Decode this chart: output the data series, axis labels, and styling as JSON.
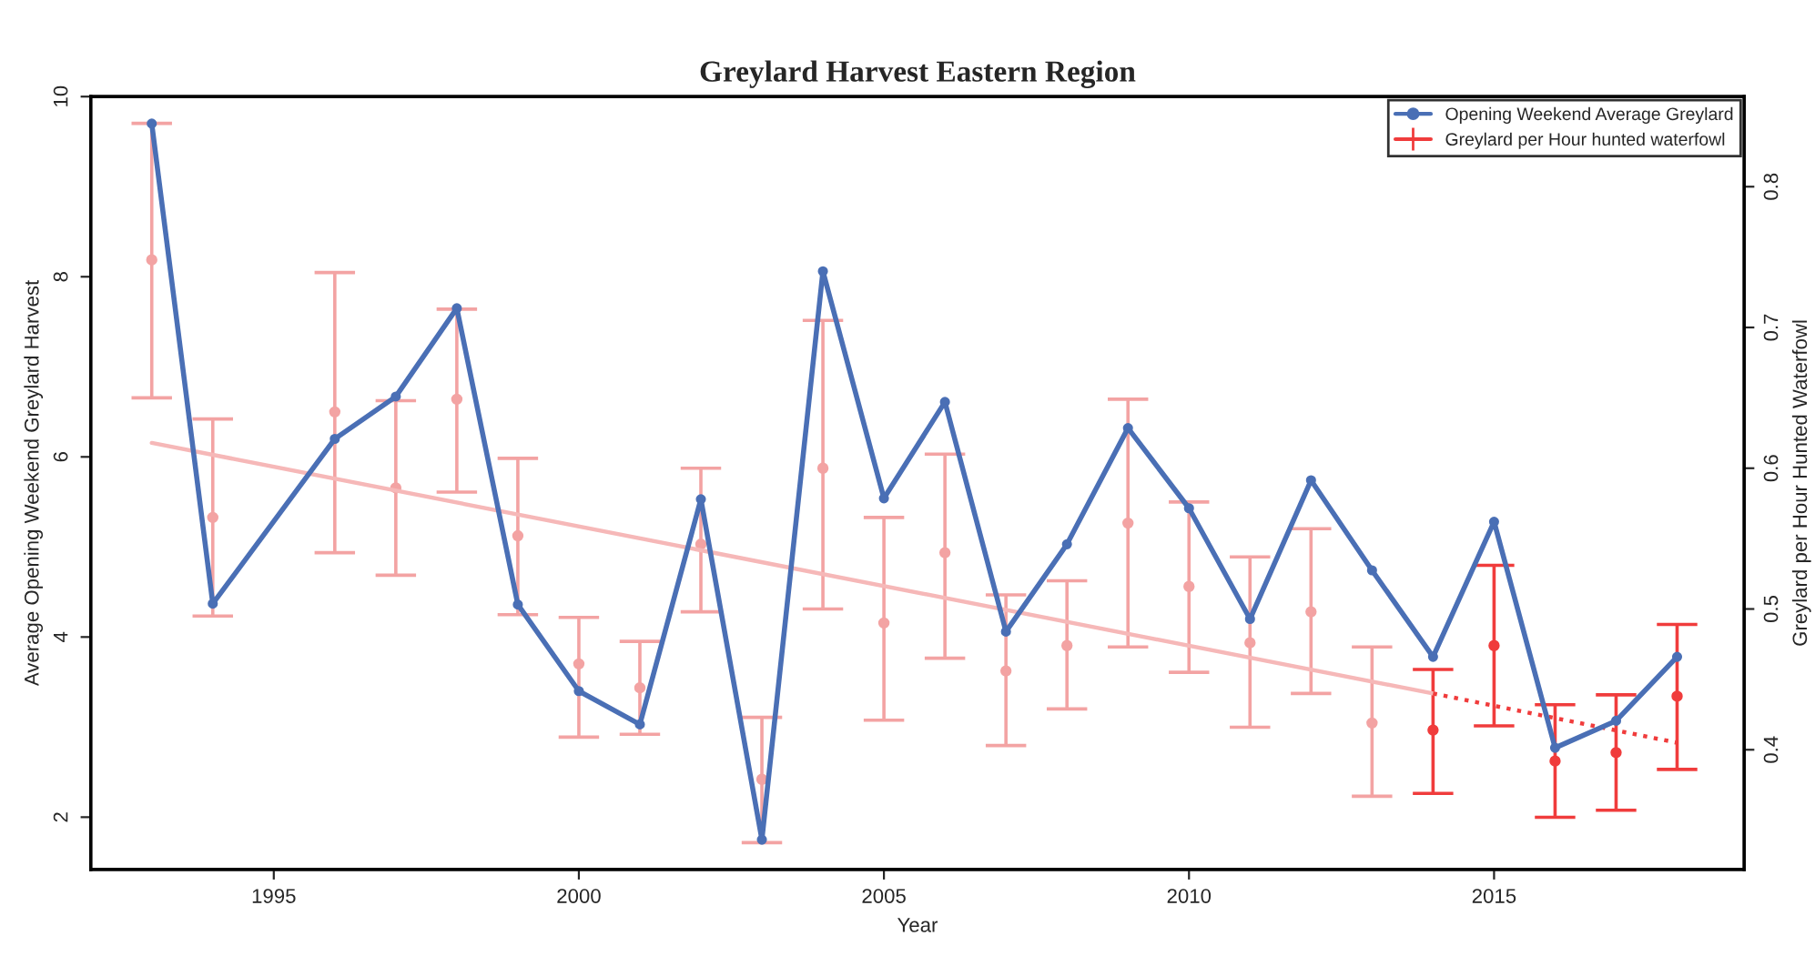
{
  "chart_data": {
    "type": "line",
    "title": "Greylard Harvest Eastern Region",
    "xlabel": "Year",
    "ylabel": "Average Opening Weekend Greylard Harvest",
    "y2label": "Greylard per Hour Hunted Waterfowl",
    "xlim": [
      1992,
      2019.1
    ],
    "xticks": [
      1995,
      2000,
      2005,
      2010,
      2015
    ],
    "ylim": [
      1.42,
      10
    ],
    "yticks": [
      2,
      4,
      6,
      8,
      10
    ],
    "y2lim": [
      0.315,
      0.864
    ],
    "y2ticks": [
      0.4,
      0.5,
      0.6,
      0.7,
      0.8
    ],
    "grid": false,
    "legend": "top right",
    "series": [
      {
        "name": "Opening Weekend Average Greylard",
        "marker": "circle",
        "color": "#4a6fb5",
        "x": [
          1993,
          1994,
          1996,
          1997,
          1998,
          1999,
          2000,
          2001,
          2002,
          2003,
          2004,
          2005,
          2006,
          2007,
          2008,
          2009,
          2010,
          2011,
          2012,
          2013,
          2014,
          2015,
          2016,
          2017,
          2018
        ],
        "values": [
          9.7,
          4.37,
          6.2,
          6.67,
          7.65,
          4.36,
          3.4,
          3.03,
          5.53,
          1.75,
          8.06,
          5.54,
          6.61,
          4.06,
          5.03,
          6.32,
          5.43,
          4.2,
          5.74,
          4.74,
          3.78,
          5.28,
          2.77,
          3.07,
          3.78
        ]
      },
      {
        "name": "Greylard per Hour hunted waterfowl",
        "type": "scatter",
        "axis": "y2",
        "marker": "circle",
        "color": "#f03c3c",
        "x": [
          1993,
          1994,
          1996,
          1997,
          1998,
          1999,
          2000,
          2001,
          2002,
          2003,
          2004,
          2005,
          2006,
          2007,
          2008,
          2009,
          2010,
          2011,
          2012,
          2013,
          2014,
          2015,
          2016,
          2017,
          2018
        ],
        "values": [
          0.748,
          0.565,
          0.64,
          0.586,
          0.649,
          0.552,
          0.461,
          0.444,
          0.546,
          0.379,
          0.6,
          0.49,
          0.54,
          0.456,
          0.474,
          0.561,
          0.516,
          0.476,
          0.498,
          0.419,
          0.414,
          0.474,
          0.392,
          0.398,
          0.438
        ],
        "errors": [
          [
            0.65,
            0.845
          ],
          [
            0.495,
            0.635
          ],
          [
            0.54,
            0.739
          ],
          [
            0.524,
            0.648
          ],
          [
            0.583,
            0.713
          ],
          [
            0.496,
            0.607
          ],
          [
            0.409,
            0.494
          ],
          [
            0.411,
            0.477
          ],
          [
            0.498,
            0.6
          ],
          [
            0.334,
            0.423
          ],
          [
            0.5,
            0.705
          ],
          [
            0.421,
            0.565
          ],
          [
            0.465,
            0.61
          ],
          [
            0.403,
            0.51
          ],
          [
            0.429,
            0.52
          ],
          [
            0.473,
            0.649
          ],
          [
            0.455,
            0.576
          ],
          [
            0.416,
            0.537
          ],
          [
            0.44,
            0.557
          ],
          [
            0.367,
            0.473
          ],
          [
            0.369,
            0.457
          ],
          [
            0.417,
            0.531
          ],
          [
            0.352,
            0.432
          ],
          [
            0.357,
            0.439
          ],
          [
            0.386,
            0.489
          ]
        ],
        "colors": [
          "#f3a3a3",
          "#f3a3a3",
          "#f3a3a3",
          "#f3a3a3",
          "#f3a3a3",
          "#f3a3a3",
          "#f3a3a3",
          "#f3a3a3",
          "#f3a3a3",
          "#f3a3a3",
          "#f3a3a3",
          "#f3a3a3",
          "#f3a3a3",
          "#f3a3a3",
          "#f3a3a3",
          "#f3a3a3",
          "#f3a3a3",
          "#f3a3a3",
          "#f3a3a3",
          "#f3a3a3",
          "#f03c3c",
          "#f03c3c",
          "#f03c3c",
          "#f03c3c",
          "#f03c3c"
        ]
      },
      {
        "type": "line",
        "axis": "y2",
        "color": "#f6b8b8",
        "line_style": "solid",
        "x": [
          1993,
          2014
        ],
        "values": [
          0.618,
          0.44
        ]
      },
      {
        "type": "line",
        "axis": "y2",
        "color": "#f03c3c",
        "line_style": "dotted",
        "x": [
          2014,
          2018
        ],
        "values": [
          0.44,
          0.405
        ]
      }
    ]
  }
}
